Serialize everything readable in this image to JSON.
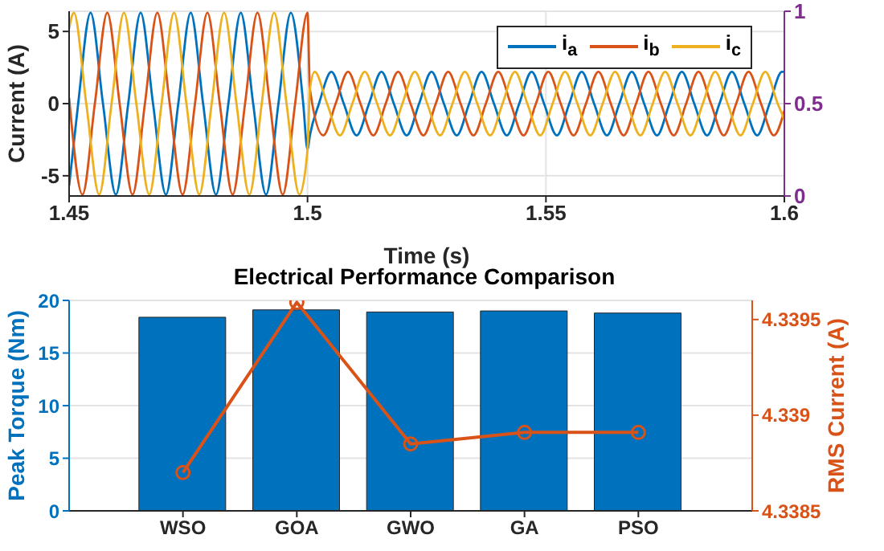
{
  "chart_data": [
    {
      "type": "line",
      "xlabel": "Time (s)",
      "ylabel": "Current (A)",
      "xlim": [
        1.45,
        1.6
      ],
      "xticks": [
        1.45,
        1.5,
        1.55,
        1.6
      ],
      "ylim": [
        -6.4,
        6.4
      ],
      "yticks": [
        -5,
        0,
        5
      ],
      "y2lim": [
        0,
        1
      ],
      "y2ticks": [
        0,
        0.5,
        1
      ],
      "grid": true,
      "legend": "top right",
      "line_style": "solid",
      "marker": "none",
      "series": [
        {
          "name": "i$_{a}$",
          "color": "#0072bd",
          "x": [
            1.45,
            1.4519,
            1.4545,
            1.4571,
            1.4598,
            1.4624,
            1.465,
            1.4676,
            1.4703,
            1.4729,
            1.4755,
            1.4781,
            1.4808,
            1.4834,
            1.486,
            1.4886,
            1.4913,
            1.4939,
            1.4965,
            1.4991,
            1.5,
            1.5005,
            1.5024,
            1.505,
            1.5076,
            1.5103,
            1.5129,
            1.5155,
            1.5181,
            1.5208,
            1.5234,
            1.526,
            1.5286,
            1.5313,
            1.5339,
            1.5365,
            1.5391,
            1.5418,
            1.5444,
            1.547,
            1.5496,
            1.5523,
            1.5549,
            1.5575,
            1.5601,
            1.5628,
            1.5654,
            1.568,
            1.5706,
            1.5733,
            1.5759,
            1.5785,
            1.5811,
            1.5838,
            1.5864,
            1.589,
            1.5916,
            1.5943,
            1.5969,
            1.5995,
            1.6
          ],
          "values": [
            -5.7,
            0,
            6.3,
            0,
            -6.3,
            0,
            6.3,
            0,
            -6.3,
            0,
            6.3,
            0,
            -6.3,
            0,
            6.3,
            0,
            -6.3,
            0,
            6.3,
            0,
            -3.2,
            -2.2,
            0,
            2.2,
            0,
            -2.2,
            0,
            2.2,
            0,
            -2.2,
            0,
            2.2,
            0,
            -2.2,
            0,
            2.2,
            0,
            -2.2,
            0,
            2.2,
            0,
            -2.2,
            0,
            2.2,
            0,
            -2.2,
            0,
            2.2,
            0,
            -2.2,
            0,
            2.2,
            0,
            -2.2,
            0,
            2.2,
            0,
            -2.2,
            0,
            2.2,
            2.2
          ]
        },
        {
          "name": "i$_{b}$",
          "color": "#d95319",
          "x": [
            1.45,
            1.4528,
            1.4554,
            1.458,
            1.4606,
            1.4633,
            1.4659,
            1.4685,
            1.4711,
            1.4738,
            1.4764,
            1.479,
            1.4816,
            1.4843,
            1.4869,
            1.4895,
            1.4921,
            1.4948,
            1.4974,
            1.5,
            1.5005,
            1.5033,
            1.5059,
            1.5085,
            1.5111,
            1.5138,
            1.5164,
            1.519,
            1.5216,
            1.5243,
            1.5269,
            1.5295,
            1.5321,
            1.5348,
            1.5374,
            1.54,
            1.5426,
            1.5453,
            1.5479,
            1.5505,
            1.5531,
            1.5558,
            1.5584,
            1.561,
            1.5636,
            1.5663,
            1.5689,
            1.5715,
            1.5741,
            1.5768,
            1.5794,
            1.582,
            1.5846,
            1.5873,
            1.5899,
            1.5925,
            1.5951,
            1.5978,
            1.6
          ],
          "values": [
            0.4,
            -6.3,
            0,
            6.3,
            0,
            -6.3,
            0,
            6.3,
            0,
            -6.3,
            0,
            6.3,
            0,
            -6.3,
            0,
            6.3,
            0,
            -6.3,
            0,
            6.3,
            1,
            -2.2,
            0,
            2.2,
            0,
            -2.2,
            0,
            2.2,
            0,
            -2.2,
            0,
            2.2,
            0,
            -2.2,
            0,
            2.2,
            0,
            -2.2,
            0,
            2.2,
            0,
            -2.2,
            0,
            2.2,
            0,
            -2.2,
            0,
            2.2,
            0,
            -2.2,
            0,
            2.2,
            0,
            -2.2,
            0,
            2.2,
            0,
            -2.2,
            -0.5
          ]
        },
        {
          "name": "i$_{c}$",
          "color": "#edb120",
          "x": [
            1.45,
            1.451,
            1.4536,
            1.4563,
            1.4589,
            1.4615,
            1.4641,
            1.4668,
            1.4694,
            1.472,
            1.4746,
            1.4773,
            1.4799,
            1.4825,
            1.4851,
            1.4878,
            1.4904,
            1.493,
            1.4956,
            1.4983,
            1.5,
            1.5005,
            1.5015,
            1.5041,
            1.5068,
            1.5094,
            1.512,
            1.5146,
            1.5173,
            1.5199,
            1.5225,
            1.5251,
            1.5278,
            1.5304,
            1.533,
            1.5356,
            1.5383,
            1.5409,
            1.5435,
            1.5461,
            1.5488,
            1.5514,
            1.554,
            1.5566,
            1.5593,
            1.5619,
            1.5645,
            1.5671,
            1.5698,
            1.5724,
            1.575,
            1.5776,
            1.5803,
            1.5829,
            1.5855,
            1.5881,
            1.5908,
            1.5934,
            1.596,
            1.5986,
            1.6
          ],
          "values": [
            5.2,
            6.3,
            0,
            -6.3,
            0,
            6.3,
            0,
            -6.3,
            0,
            6.3,
            0,
            -6.3,
            0,
            6.3,
            0,
            -6.3,
            0,
            6.3,
            0,
            -6.3,
            -3.2,
            1,
            2.2,
            0,
            -2.2,
            0,
            2.2,
            0,
            -2.2,
            0,
            2.2,
            0,
            -2.2,
            0,
            2.2,
            0,
            -2.2,
            0,
            2.2,
            0,
            -2.2,
            0,
            2.2,
            0,
            -2.2,
            0,
            2.2,
            0,
            -2.2,
            0,
            2.2,
            0,
            -2.2,
            0,
            2.2,
            0,
            -2.2,
            0,
            2.2,
            0,
            -1.1
          ]
        }
      ]
    },
    {
      "type": "bar",
      "title": "Electrical Performance Comparison",
      "ylabel": "Peak Torque (Nm)",
      "y2label": "RMS Current (A)",
      "categories": [
        "WSO",
        "GOA",
        "GWO",
        "GA",
        "PSO"
      ],
      "ylim": [
        0,
        20
      ],
      "yticks": [
        0,
        5,
        10,
        15,
        20
      ],
      "y2lim": [
        4.3385,
        4.3396
      ],
      "y2ticks": [
        4.3385,
        4.339,
        4.3395
      ],
      "grid": "y",
      "series": [
        {
          "type": "bar",
          "color": "#0072bd",
          "values": [
            18.4,
            19.1,
            18.9,
            19.0,
            18.8
          ]
        },
        {
          "type": "line",
          "axis": "y2",
          "color": "#d95319",
          "marker": "circle",
          "values": [
            4.3387,
            4.33959,
            4.33885,
            4.33891,
            4.33891
          ]
        }
      ]
    }
  ]
}
